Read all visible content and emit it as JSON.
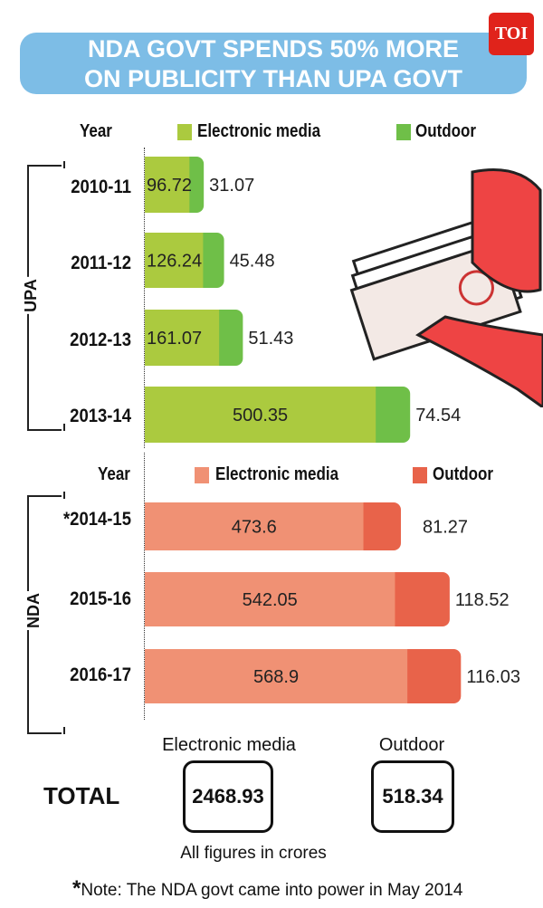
{
  "title_line1": "NDA GOVT SPENDS 50% MORE",
  "title_line2": "ON PUBLICITY THAN UPA GOVT",
  "logo": "TOI",
  "chart_data": {
    "type": "bar",
    "orientation": "horizontal",
    "stacked": true,
    "groups": [
      {
        "name": "UPA",
        "year_label": "Year",
        "legend": [
          "Electronic media",
          "Outdoor"
        ],
        "colors": {
          "Electronic media": "#abca3f",
          "Outdoor": "#6fbf48"
        },
        "categories": [
          "2010-11",
          "2011-12",
          "2012-13",
          "2013-14"
        ],
        "series": [
          {
            "name": "Electronic media",
            "values": [
              "96.72",
              "126.24",
              "161.07",
              "500.35"
            ]
          },
          {
            "name": "Outdoor",
            "values": [
              "31.07",
              "45.48",
              "51.43",
              "74.54"
            ]
          }
        ]
      },
      {
        "name": "NDA",
        "year_label": "Year",
        "legend": [
          "Electronic media",
          "Outdoor"
        ],
        "colors": {
          "Electronic media": "#f09174",
          "Outdoor": "#e8634a"
        },
        "categories": [
          "*2014-15",
          "2015-16",
          "2016-17"
        ],
        "series": [
          {
            "name": "Electronic media",
            "values": [
              "473.6",
              "542.05",
              "568.9"
            ]
          },
          {
            "name": "Outdoor",
            "values": [
              "81.27",
              "118.52",
              "116.03"
            ]
          }
        ]
      }
    ]
  },
  "totals": {
    "label": "TOTAL",
    "electronic_label": "Electronic media",
    "electronic_value": "2468.93",
    "outdoor_label": "Outdoor",
    "outdoor_value": "518.34",
    "units_note": "All figures in crores"
  },
  "footnote_star": "*",
  "footnote": "Note: The NDA govt came into power in May 2014"
}
